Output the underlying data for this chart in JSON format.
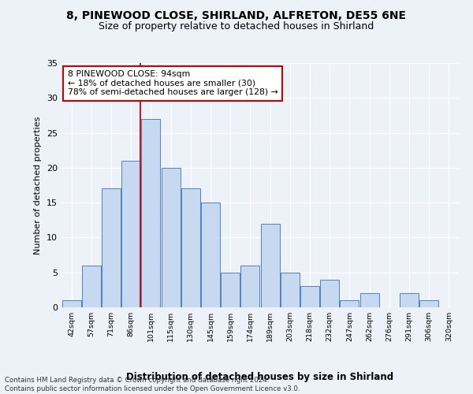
{
  "title_line1": "8, PINEWOOD CLOSE, SHIRLAND, ALFRETON, DE55 6NE",
  "title_line2": "Size of property relative to detached houses in Shirland",
  "xlabel": "Distribution of detached houses by size in Shirland",
  "ylabel": "Number of detached properties",
  "bin_labels": [
    "42sqm",
    "57sqm",
    "71sqm",
    "86sqm",
    "101sqm",
    "115sqm",
    "130sqm",
    "145sqm",
    "159sqm",
    "174sqm",
    "189sqm",
    "203sqm",
    "218sqm",
    "232sqm",
    "247sqm",
    "262sqm",
    "276sqm",
    "291sqm",
    "306sqm",
    "320sqm"
  ],
  "bar_heights": [
    1,
    6,
    17,
    21,
    27,
    20,
    17,
    15,
    5,
    6,
    12,
    5,
    3,
    4,
    1,
    2,
    0,
    2,
    1,
    0
  ],
  "bar_color": "#c7d9f0",
  "bar_edge_color": "#4f81bd",
  "vline_pos": 3.47,
  "vline_color": "#cc0000",
  "annotation_text": "8 PINEWOOD CLOSE: 94sqm\n← 18% of detached houses are smaller (30)\n78% of semi-detached houses are larger (128) →",
  "annotation_box_color": "#ffffff",
  "annotation_box_edge": "#cc0000",
  "ylim": [
    0,
    35
  ],
  "yticks": [
    0,
    5,
    10,
    15,
    20,
    25,
    30,
    35
  ],
  "footer_text": "Contains HM Land Registry data © Crown copyright and database right 2024.\nContains public sector information licensed under the Open Government Licence v3.0.",
  "fig_bg_color": "#edf2f9",
  "plot_bg_color": "#edf2f9"
}
